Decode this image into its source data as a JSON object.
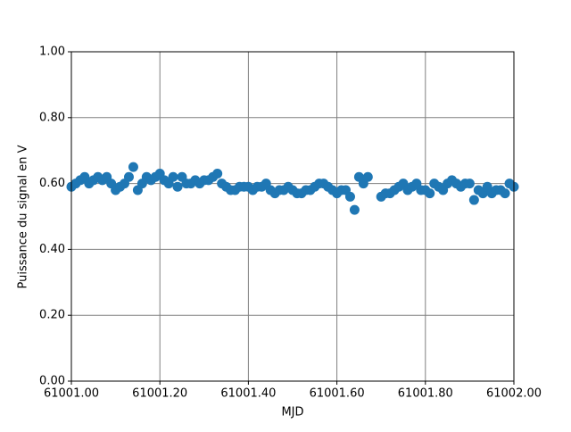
{
  "chart_data": {
    "type": "scatter",
    "xlabel": "MJD",
    "ylabel": "Puissance du signal en V",
    "x": [
      61001.0,
      61001.01,
      61001.02,
      61001.03,
      61001.04,
      61001.05,
      61001.06,
      61001.07,
      61001.08,
      61001.09,
      61001.1,
      61001.11,
      61001.12,
      61001.13,
      61001.14,
      61001.15,
      61001.16,
      61001.17,
      61001.18,
      61001.19,
      61001.2,
      61001.21,
      61001.22,
      61001.23,
      61001.24,
      61001.25,
      61001.26,
      61001.27,
      61001.28,
      61001.29,
      61001.3,
      61001.31,
      61001.32,
      61001.33,
      61001.34,
      61001.35,
      61001.36,
      61001.37,
      61001.38,
      61001.39,
      61001.4,
      61001.41,
      61001.42,
      61001.43,
      61001.44,
      61001.45,
      61001.46,
      61001.47,
      61001.48,
      61001.49,
      61001.5,
      61001.51,
      61001.52,
      61001.53,
      61001.54,
      61001.55,
      61001.56,
      61001.57,
      61001.58,
      61001.59,
      61001.6,
      61001.61,
      61001.62,
      61001.63,
      61001.64,
      61001.65,
      61001.66,
      61001.67,
      61001.7,
      61001.71,
      61001.72,
      61001.73,
      61001.74,
      61001.75,
      61001.76,
      61001.77,
      61001.78,
      61001.79,
      61001.8,
      61001.81,
      61001.82,
      61001.83,
      61001.84,
      61001.85,
      61001.86,
      61001.87,
      61001.88,
      61001.89,
      61001.9,
      61001.91,
      61001.92,
      61001.93,
      61001.94,
      61001.95,
      61001.96,
      61001.97,
      61001.98,
      61001.99,
      61002.0
    ],
    "series": [
      {
        "color": "#1f77b4",
        "values": [
          0.59,
          0.6,
          0.61,
          0.62,
          0.6,
          0.61,
          0.62,
          0.61,
          0.62,
          0.6,
          0.58,
          0.59,
          0.6,
          0.62,
          0.65,
          0.58,
          0.6,
          0.62,
          0.61,
          0.62,
          0.63,
          0.61,
          0.6,
          0.62,
          0.59,
          0.62,
          0.6,
          0.6,
          0.61,
          0.6,
          0.61,
          0.61,
          0.62,
          0.63,
          0.6,
          0.59,
          0.58,
          0.58,
          0.59,
          0.59,
          0.59,
          0.58,
          0.59,
          0.59,
          0.6,
          0.58,
          0.57,
          0.58,
          0.58,
          0.59,
          0.58,
          0.57,
          0.57,
          0.58,
          0.58,
          0.59,
          0.6,
          0.6,
          0.59,
          0.58,
          0.57,
          0.58,
          0.58,
          0.56,
          0.52,
          0.62,
          0.6,
          0.62,
          0.56,
          0.57,
          0.57,
          0.58,
          0.59,
          0.6,
          0.58,
          0.59,
          0.6,
          0.58,
          0.58,
          0.57,
          0.6,
          0.59,
          0.58,
          0.6,
          0.61,
          0.6,
          0.59,
          0.6,
          0.6,
          0.55,
          0.58,
          0.57,
          0.59,
          0.57,
          0.58,
          0.58,
          0.57,
          0.6,
          0.59
        ]
      }
    ],
    "xlim": [
      61001.0,
      61002.0
    ],
    "xticks": [
      {
        "value": 61001.0,
        "label": "61001.00"
      },
      {
        "value": 61001.2,
        "label": "61001.20"
      },
      {
        "value": 61001.4,
        "label": "61001.40"
      },
      {
        "value": 61001.6,
        "label": "61001.60"
      },
      {
        "value": 61001.8,
        "label": "61001.80"
      },
      {
        "value": 61002.0,
        "label": "61002.00"
      }
    ],
    "ylim": [
      0,
      1
    ],
    "yticks": [
      {
        "value": 0,
        "label": "0.00"
      },
      {
        "value": 0.2,
        "label": "0.20"
      },
      {
        "value": 0.4,
        "label": "0.40"
      },
      {
        "value": 0.6,
        "label": "0.60"
      },
      {
        "value": 0.8,
        "label": "0.80"
      },
      {
        "value": 1,
        "label": "1.00"
      }
    ],
    "grid": true
  }
}
